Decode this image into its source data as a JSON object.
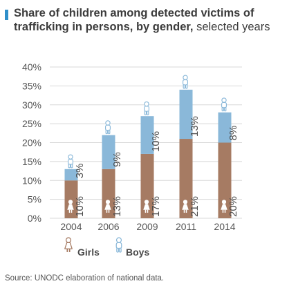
{
  "header": {
    "title_bold": "Share of children among detected victims of trafficking in persons, by gender,",
    "title_light": "selected years"
  },
  "chart_data": {
    "type": "bar",
    "stacked": true,
    "orientation": "vertical",
    "categories": [
      "2004",
      "2006",
      "2009",
      "2011",
      "2014"
    ],
    "series": [
      {
        "name": "Girls",
        "values": [
          10,
          13,
          17,
          21,
          20
        ],
        "labels": [
          "10%",
          "13%",
          "17%",
          "21%",
          "20%"
        ],
        "color": "#a67b63"
      },
      {
        "name": "Boys",
        "values": [
          3,
          9,
          10,
          13,
          8
        ],
        "labels": [
          "3%",
          "9%",
          "10%",
          "13%",
          "8%"
        ],
        "color": "#8ab8d9"
      }
    ],
    "ylim": [
      0,
      40
    ],
    "yticks": [
      0,
      5,
      10,
      15,
      20,
      25,
      30,
      35,
      40
    ],
    "ytick_labels": [
      "0%",
      "5%",
      "10%",
      "15%",
      "20%",
      "25%",
      "30%",
      "35%",
      "40%"
    ],
    "grid": true,
    "legend_position": "bottom-left",
    "accent_color": "#2f8fca",
    "grid_color": "#d8d8d8"
  },
  "legend": {
    "girls_label": "Girls",
    "boys_label": "Boys"
  },
  "footer": {
    "source": "Source: UNODC elaboration of national data."
  },
  "icons": {
    "girl": "girl-figure-icon",
    "boy": "boy-figure-icon"
  }
}
